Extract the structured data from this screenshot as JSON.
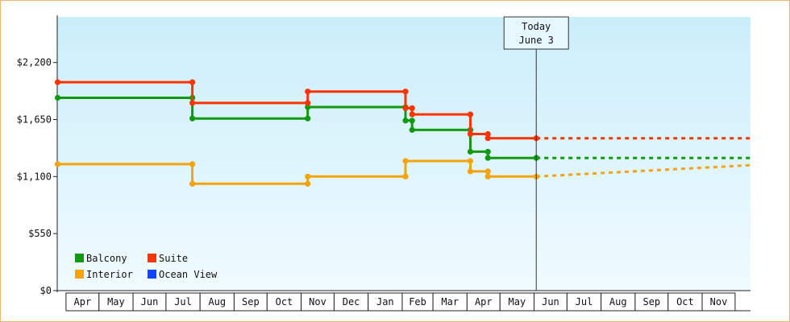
{
  "chart_data": {
    "type": "line",
    "step": true,
    "title": "",
    "xlabel": "",
    "ylabel": "",
    "ylim": [
      0,
      2640
    ],
    "y_ticks": [
      {
        "value": 0,
        "label": "$0"
      },
      {
        "value": 550,
        "label": "$550"
      },
      {
        "value": 1100,
        "label": "$1,100"
      },
      {
        "value": 1650,
        "label": "$1,650"
      },
      {
        "value": 2200,
        "label": "$2,200"
      }
    ],
    "x_range": [
      "2024-03-24",
      "2025-12-15"
    ],
    "months": [
      {
        "label": "Apr",
        "start": "2024-04-01"
      },
      {
        "label": "May",
        "start": "2024-05-01"
      },
      {
        "label": "Jun",
        "start": "2024-06-01"
      },
      {
        "label": "Jul",
        "start": "2024-07-01"
      },
      {
        "label": "Aug",
        "start": "2024-08-01"
      },
      {
        "label": "Sep",
        "start": "2024-09-01"
      },
      {
        "label": "Oct",
        "start": "2024-10-01"
      },
      {
        "label": "Nov",
        "start": "2024-11-01"
      },
      {
        "label": "Dec",
        "start": "2024-12-01"
      },
      {
        "label": "Jan",
        "start": "2025-01-01"
      },
      {
        "label": "Feb",
        "start": "2025-02-01"
      },
      {
        "label": "Mar",
        "start": "2025-03-01"
      },
      {
        "label": "Apr",
        "start": "2025-04-01"
      },
      {
        "label": "May",
        "start": "2025-05-01"
      },
      {
        "label": "Jun",
        "start": "2025-06-01"
      },
      {
        "label": "Jul",
        "start": "2025-07-01"
      },
      {
        "label": "Aug",
        "start": "2025-08-01"
      },
      {
        "label": "Sep",
        "start": "2025-09-01"
      },
      {
        "label": "Oct",
        "start": "2025-10-01"
      },
      {
        "label": "Nov",
        "start": "2025-11-01"
      }
    ],
    "month_axis_end": "2025-12-01",
    "today": {
      "line1": "Today",
      "line2": "June 3",
      "date": "2025-06-03"
    },
    "legend": {
      "placement": "bottom-left"
    },
    "series": [
      {
        "name": "Balcony",
        "color": "#119911",
        "points": [
          {
            "x": "2024-03-24",
            "y": 1860
          },
          {
            "x": "2024-07-25",
            "y": 1860
          },
          {
            "x": "2024-07-25",
            "y": 1660
          },
          {
            "x": "2024-11-07",
            "y": 1660
          },
          {
            "x": "2024-11-07",
            "y": 1770
          },
          {
            "x": "2025-02-04",
            "y": 1770
          },
          {
            "x": "2025-02-04",
            "y": 1640
          },
          {
            "x": "2025-02-10",
            "y": 1640
          },
          {
            "x": "2025-02-10",
            "y": 1550
          },
          {
            "x": "2025-04-04",
            "y": 1550
          },
          {
            "x": "2025-04-04",
            "y": 1340
          },
          {
            "x": "2025-04-20",
            "y": 1340
          },
          {
            "x": "2025-04-20",
            "y": 1280
          },
          {
            "x": "2025-06-03",
            "y": 1280
          }
        ],
        "projection": [
          {
            "x": "2025-06-03",
            "y": 1280
          },
          {
            "x": "2025-12-15",
            "y": 1280
          }
        ]
      },
      {
        "name": "Suite",
        "color": "#ff3300",
        "points": [
          {
            "x": "2024-03-24",
            "y": 2010
          },
          {
            "x": "2024-07-25",
            "y": 2010
          },
          {
            "x": "2024-07-25",
            "y": 1810
          },
          {
            "x": "2024-11-07",
            "y": 1810
          },
          {
            "x": "2024-11-07",
            "y": 1920
          },
          {
            "x": "2025-02-04",
            "y": 1920
          },
          {
            "x": "2025-02-04",
            "y": 1760
          },
          {
            "x": "2025-02-10",
            "y": 1760
          },
          {
            "x": "2025-02-10",
            "y": 1700
          },
          {
            "x": "2025-04-04",
            "y": 1700
          },
          {
            "x": "2025-04-04",
            "y": 1510
          },
          {
            "x": "2025-04-20",
            "y": 1510
          },
          {
            "x": "2025-04-20",
            "y": 1470
          },
          {
            "x": "2025-06-03",
            "y": 1470
          }
        ],
        "projection": [
          {
            "x": "2025-06-03",
            "y": 1470
          },
          {
            "x": "2025-12-15",
            "y": 1470
          }
        ]
      },
      {
        "name": "Interior",
        "color": "#f5a30a",
        "points": [
          {
            "x": "2024-03-24",
            "y": 1220
          },
          {
            "x": "2024-07-25",
            "y": 1220
          },
          {
            "x": "2024-07-25",
            "y": 1030
          },
          {
            "x": "2024-11-07",
            "y": 1030
          },
          {
            "x": "2024-11-07",
            "y": 1100
          },
          {
            "x": "2025-02-04",
            "y": 1100
          },
          {
            "x": "2025-02-04",
            "y": 1250
          },
          {
            "x": "2025-04-04",
            "y": 1250
          },
          {
            "x": "2025-04-04",
            "y": 1150
          },
          {
            "x": "2025-04-20",
            "y": 1150
          },
          {
            "x": "2025-04-20",
            "y": 1100
          },
          {
            "x": "2025-06-03",
            "y": 1100
          }
        ],
        "projection": [
          {
            "x": "2025-06-03",
            "y": 1100
          },
          {
            "x": "2025-12-15",
            "y": 1210
          }
        ]
      },
      {
        "name": "Ocean View",
        "color": "#1144ff",
        "points": [],
        "projection": []
      }
    ]
  }
}
